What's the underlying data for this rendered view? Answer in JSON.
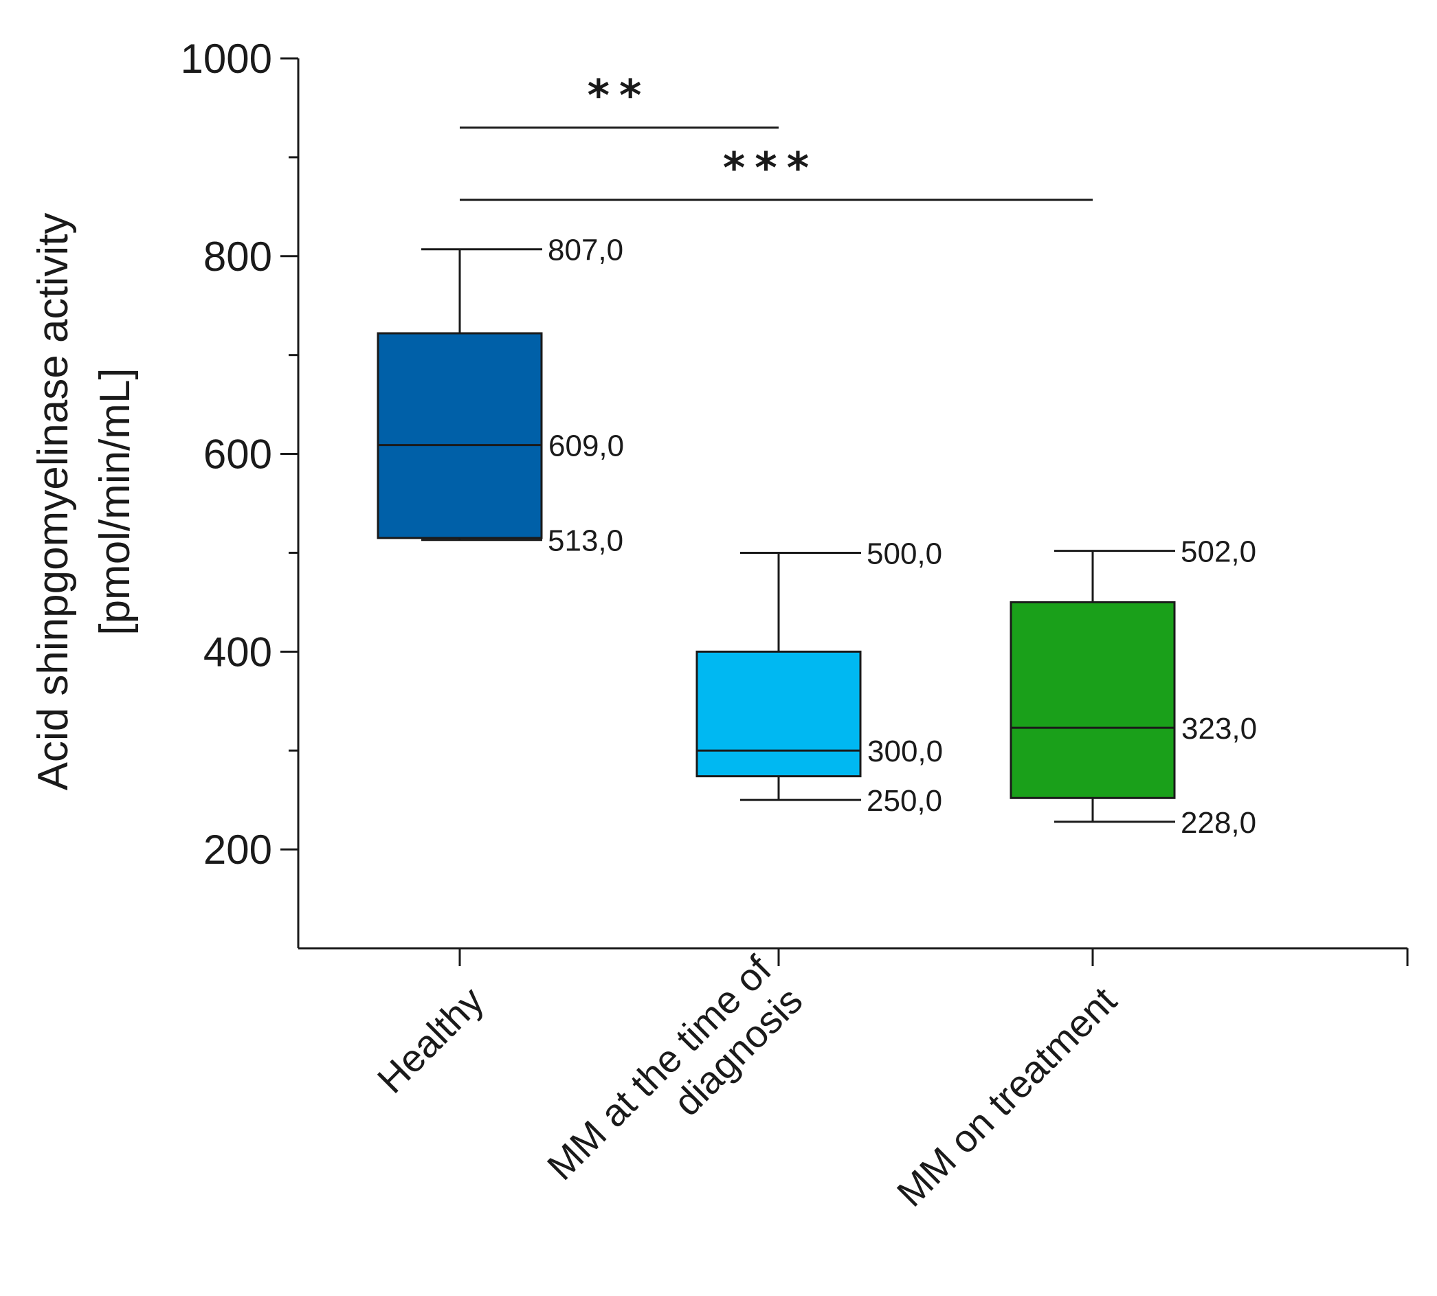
{
  "chart_data": {
    "type": "box",
    "title": "",
    "ylabel_line1": "Acid shinpgomyelinase activity",
    "ylabel_line2": "[pmol/min/mL]",
    "xlabel": "",
    "ylim": [
      100,
      1000
    ],
    "yticks_major": [
      200,
      400,
      600,
      800,
      1000
    ],
    "yticks_minor": [
      300,
      500,
      700,
      900
    ],
    "tick_labels": [
      "200",
      "400",
      "600",
      "800",
      "1000"
    ],
    "categories": [
      {
        "name": "Healthy",
        "lines": [
          "Healthy"
        ]
      },
      {
        "name": "MM at the time of diagnosis",
        "lines": [
          "MM at the time of",
          "diagnosis"
        ]
      },
      {
        "name": "MM on treatment",
        "lines": [
          "MM on treatment"
        ]
      }
    ],
    "boxes": [
      {
        "category": "Healthy",
        "whisker_low": 513,
        "q1": 515,
        "median": 609,
        "q3": 722,
        "whisker_high": 807,
        "color": "#0060a8",
        "labels": {
          "high": "807,0",
          "median": "609,0",
          "low": "513,0"
        }
      },
      {
        "category": "MM at the time of diagnosis",
        "whisker_low": 250,
        "q1": 274,
        "median": 300,
        "q3": 400,
        "whisker_high": 500,
        "color": "#00b8f2",
        "labels": {
          "high": "500,0",
          "median": "300,0",
          "low": "250,0"
        }
      },
      {
        "category": "MM on treatment",
        "whisker_low": 228,
        "q1": 252,
        "median": 323,
        "q3": 450,
        "whisker_high": 502,
        "color": "#1aa01a",
        "labels": {
          "high": "502,0",
          "median": "323,0",
          "low": "228,0"
        }
      }
    ],
    "significance": [
      {
        "from": 0,
        "to": 1,
        "y": 930,
        "label": "**"
      },
      {
        "from": 0,
        "to": 2,
        "y": 857,
        "label": "***"
      }
    ]
  }
}
